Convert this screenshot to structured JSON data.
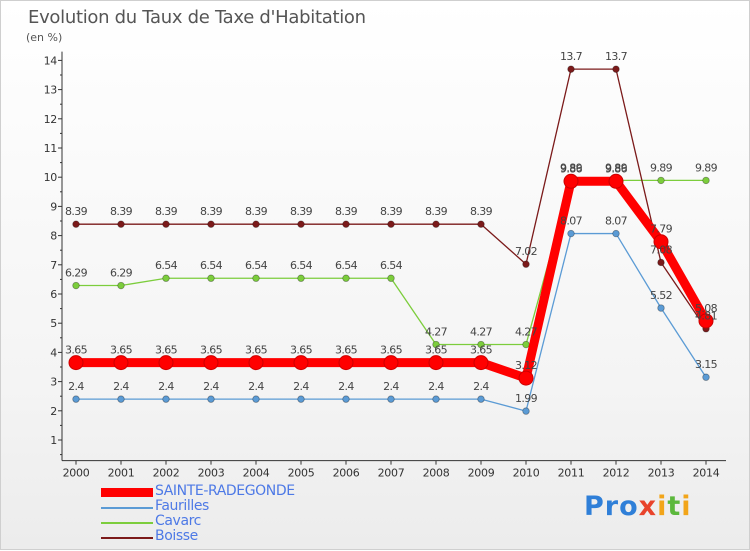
{
  "title": "Evolution du Taux de Taxe d'Habitation",
  "unit": "(en %)",
  "brand": {
    "p1": "Pro",
    "x": "x",
    "i": "i",
    "t": "t",
    "i2": "i"
  },
  "colors": {
    "SAINTE-RADEGONDE": "#ff0000",
    "Faurilles": "#5b9bd5",
    "Cavarc": "#7ccd3c",
    "Boisse": "#7b1a1a"
  },
  "chart_data": {
    "type": "line",
    "x": [
      2000,
      2001,
      2002,
      2003,
      2004,
      2005,
      2006,
      2007,
      2008,
      2009,
      2010,
      2011,
      2012,
      2013,
      2014
    ],
    "ylim": [
      0.5,
      14.3
    ],
    "yticks": [
      1,
      2,
      3,
      4,
      5,
      6,
      7,
      8,
      9,
      10,
      11,
      12,
      13,
      14
    ],
    "grid": false,
    "legend_position": "bottom-left",
    "series": [
      {
        "name": "SAINTE-RADEGONDE",
        "values": [
          3.65,
          3.65,
          3.65,
          3.65,
          3.65,
          3.65,
          3.65,
          3.65,
          3.65,
          3.65,
          3.12,
          9.86,
          9.86,
          7.79,
          5.08
        ],
        "labels": [
          "3.65",
          "3.65",
          "3.65",
          "3.65",
          "3.65",
          "3.65",
          "3.65",
          "3.65",
          "3.65",
          "3.65",
          "3.12",
          "9.86",
          "9.86",
          "7.79",
          "5.08"
        ]
      },
      {
        "name": "Faurilles",
        "values": [
          2.4,
          2.4,
          2.4,
          2.4,
          2.4,
          2.4,
          2.4,
          2.4,
          2.4,
          2.4,
          1.99,
          8.07,
          8.07,
          5.52,
          3.15
        ],
        "labels": [
          "2.4",
          "2.4",
          "2.4",
          "2.4",
          "2.4",
          "2.4",
          "2.4",
          "2.4",
          "2.4",
          "2.4",
          "1.99",
          "8.07",
          "8.07",
          "5.52",
          "3.15"
        ]
      },
      {
        "name": "Cavarc",
        "values": [
          6.29,
          6.29,
          6.54,
          6.54,
          6.54,
          6.54,
          6.54,
          6.54,
          4.27,
          4.27,
          4.27,
          9.89,
          9.89,
          9.89,
          9.89
        ],
        "labels": [
          "6.29",
          "6.29",
          "6.54",
          "6.54",
          "6.54",
          "6.54",
          "6.54",
          "6.54",
          "4.27",
          "4.27",
          "4.27",
          "9.89",
          "9.89",
          "9.89",
          "9.89"
        ]
      },
      {
        "name": "Boisse",
        "values": [
          8.39,
          8.39,
          8.39,
          8.39,
          8.39,
          8.39,
          8.39,
          8.39,
          8.39,
          8.39,
          7.02,
          13.7,
          13.7,
          7.08,
          4.81
        ],
        "labels": [
          "8.39",
          "8.39",
          "8.39",
          "8.39",
          "8.39",
          "8.39",
          "8.39",
          "8.39",
          "8.39",
          "8.39",
          "7.02",
          "13.7",
          "13.7",
          "7.08",
          "4.81"
        ]
      }
    ]
  }
}
